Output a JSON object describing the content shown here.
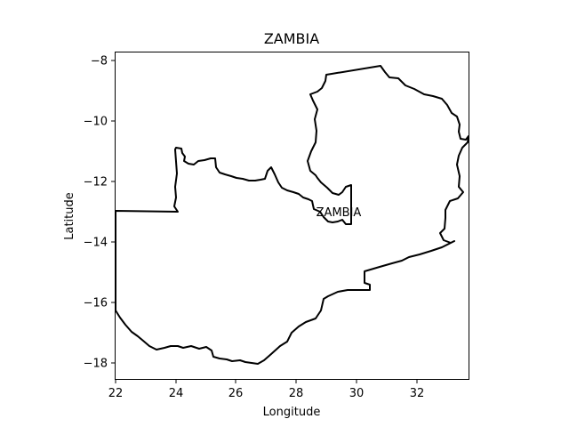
{
  "map": {
    "title": "ZAMBIA",
    "x_axis_label": "Longitude",
    "y_axis_label": "Latitude",
    "x_ticks": [
      "22",
      "24",
      "26",
      "28",
      "30",
      "32"
    ],
    "y_ticks": [
      "−8",
      "−10",
      "−12",
      "−14",
      "−16",
      "−18"
    ],
    "region_label": "ZAMBIA",
    "border_color": "#000000",
    "background_color": "#ffffff"
  }
}
